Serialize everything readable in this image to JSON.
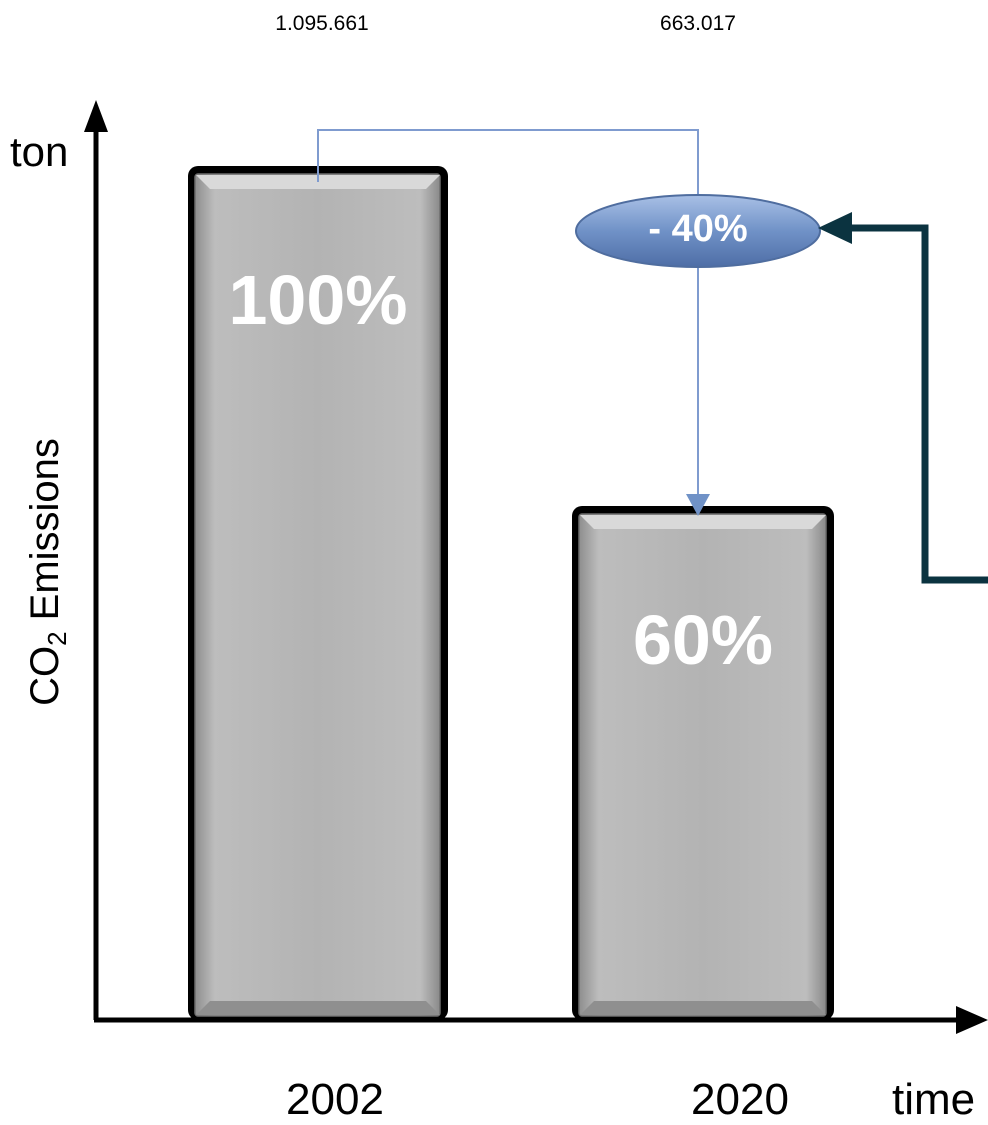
{
  "chart_data": {
    "type": "bar",
    "categories": [
      "2002",
      "2020"
    ],
    "values": [
      100,
      60
    ],
    "ylim": [
      0,
      110
    ],
    "value_labels": [
      "1.095.661",
      "663.017"
    ],
    "bar_labels": [
      "100%",
      "60%"
    ],
    "change_label": "- 40%",
    "ylabel": {
      "main": "CO",
      "subscript": "2",
      "rest": " Emissions"
    },
    "y_unit": "ton",
    "x_unit": "time",
    "grid": false,
    "colors": {
      "bar_fill": "#b3b3b3",
      "bar_edge": "#000000",
      "oval_fill": "#7092c7",
      "connector": "#7f9bcf",
      "feedback_arrow": "#0b3340"
    }
  }
}
